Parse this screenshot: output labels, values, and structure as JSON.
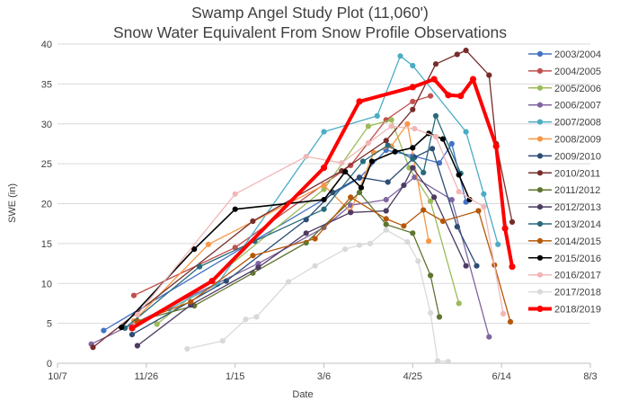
{
  "chart_data": {
    "type": "line",
    "title": "Swamp Angel Study Plot (11,060')",
    "subtitle": "Snow Water Equivalent From Snow Profile Observations",
    "xlabel": "Date",
    "ylabel": "SWE (in)",
    "x_tick_labels": [
      "10/7",
      "11/26",
      "1/15",
      "3/6",
      "4/25",
      "6/14",
      "8/3"
    ],
    "x_tick_days": [
      0,
      50,
      100,
      150,
      200,
      250,
      300
    ],
    "xlim": [
      0,
      300
    ],
    "ylim": [
      0,
      40
    ],
    "y_ticks": [
      0,
      5,
      10,
      15,
      20,
      25,
      30,
      35,
      40
    ],
    "grid": true,
    "legend_position": "right",
    "series": [
      {
        "name": "2003/2004",
        "color": "#4472C4",
        "width": 1.3,
        "x": [
          26,
          170,
          185,
          200,
          215,
          222,
          230
        ],
        "y": [
          4.1,
          23.2,
          26.7,
          26,
          25.1,
          27.5,
          20.2
        ]
      },
      {
        "name": "2004/2005",
        "color": "#C0504D",
        "width": 1.3,
        "x": [
          43,
          100,
          165,
          185,
          200,
          210
        ],
        "y": [
          8.5,
          14.5,
          24.8,
          30.5,
          32.8,
          33.5
        ]
      },
      {
        "name": "2005/2006",
        "color": "#9BBB59",
        "width": 1.3,
        "x": [
          56,
          150,
          175,
          188,
          198,
          210,
          226
        ],
        "y": [
          4.9,
          21.8,
          29.7,
          30.5,
          24.5,
          20.3,
          7.5
        ]
      },
      {
        "name": "2006/2007",
        "color": "#8064A2",
        "width": 1.3,
        "x": [
          19,
          113,
          150,
          165,
          185,
          201,
          222,
          243
        ],
        "y": [
          2.4,
          12.5,
          17,
          19.8,
          20.5,
          23.3,
          20.5,
          3.3
        ]
      },
      {
        "name": "2007/2008",
        "color": "#4BACC6",
        "width": 1.3,
        "x": [
          63,
          90,
          150,
          180,
          193,
          200,
          230,
          240,
          248
        ],
        "y": [
          6.8,
          9.9,
          29,
          31,
          38.5,
          37.3,
          29,
          21.2,
          14.9
        ]
      },
      {
        "name": "2008/2009",
        "color": "#F79646",
        "width": 1.3,
        "x": [
          43,
          85,
          150,
          165,
          178,
          188,
          197,
          209
        ],
        "y": [
          5.3,
          14.9,
          22.3,
          19,
          26.4,
          27.2,
          30,
          15.3
        ]
      },
      {
        "name": "2009/2010",
        "color": "#2C4D75",
        "width": 1.3,
        "x": [
          42,
          95,
          140,
          155,
          170,
          186,
          201,
          211,
          225,
          236
        ],
        "y": [
          3.6,
          10.3,
          18,
          21.4,
          23.3,
          22.7,
          25.8,
          26.9,
          17.1,
          12.2
        ]
      },
      {
        "name": "2010/2011",
        "color": "#772C2A",
        "width": 1.3,
        "x": [
          20,
          110,
          160,
          185,
          200,
          213,
          225,
          230,
          243,
          247,
          256
        ],
        "y": [
          2,
          17.8,
          24.1,
          27.9,
          31.8,
          37.5,
          38.7,
          39.2,
          36.1,
          27.5,
          17.7
        ]
      },
      {
        "name": "2011/2012",
        "color": "#5F7530",
        "width": 1.3,
        "x": [
          45,
          77,
          110,
          140,
          170,
          185,
          200,
          210,
          215
        ],
        "y": [
          5.3,
          7.2,
          11.3,
          15.1,
          21.4,
          17.4,
          16.3,
          11,
          5.8
        ]
      },
      {
        "name": "2012/2013",
        "color": "#4D3B62",
        "width": 1.3,
        "x": [
          45,
          75,
          113,
          140,
          165,
          185,
          195,
          200,
          212,
          230
        ],
        "y": [
          2.2,
          7.3,
          12,
          16.3,
          18.9,
          19.1,
          22.3,
          24.5,
          20.8,
          12.2
        ]
      },
      {
        "name": "2013/2014",
        "color": "#276A7C",
        "width": 1.3,
        "x": [
          38,
          80,
          111,
          150,
          172,
          186,
          200,
          206,
          213,
          227
        ],
        "y": [
          4.4,
          12.1,
          15.3,
          19.3,
          25.3,
          27.3,
          25.6,
          23.9,
          31,
          23.8
        ]
      },
      {
        "name": "2014/2015",
        "color": "#B65708",
        "width": 1.3,
        "x": [
          45,
          75,
          110,
          145,
          165,
          185,
          195,
          206,
          217,
          237,
          246,
          255
        ],
        "y": [
          5.2,
          7.7,
          13.5,
          15.6,
          20.8,
          18.1,
          17.2,
          19.2,
          17.8,
          19.1,
          12.3,
          5.2
        ]
      },
      {
        "name": "2015/2016",
        "color": "#000000",
        "width": 1.6,
        "x": [
          36,
          77,
          100,
          150,
          162,
          171,
          177,
          190,
          200,
          209,
          217,
          226,
          232
        ],
        "y": [
          4.5,
          14.3,
          19.3,
          20.5,
          24,
          22,
          25.3,
          26.5,
          27,
          28.8,
          28.1,
          23.6,
          20.5
        ]
      },
      {
        "name": "2016/2017",
        "color": "#F2B6B6",
        "width": 1.3,
        "x": [
          45,
          100,
          140,
          160,
          175,
          188,
          201,
          213,
          226,
          240,
          251
        ],
        "y": [
          6.1,
          21.2,
          25.9,
          25.1,
          27.6,
          29.7,
          29.4,
          28.4,
          21.5,
          19.6,
          6.2
        ]
      },
      {
        "name": "2017/2018",
        "color": "#D9D9D9",
        "width": 1.3,
        "x": [
          73,
          93,
          106,
          112,
          130,
          145,
          162,
          170,
          176,
          185,
          197,
          203,
          210,
          214,
          220
        ],
        "y": [
          1.8,
          2.8,
          5.5,
          5.8,
          10.2,
          12.2,
          14.3,
          14.8,
          15,
          16.7,
          15.2,
          12.8,
          6.3,
          0.3,
          0.2
        ]
      },
      {
        "name": "2018/2019",
        "color": "#FF0000",
        "width": 4,
        "x": [
          42,
          87,
          150,
          170,
          200,
          212,
          220,
          227,
          234,
          247,
          252,
          256
        ],
        "y": [
          4.4,
          10.3,
          24.5,
          32.8,
          34.6,
          35.6,
          33.6,
          33.5,
          35.6,
          27.2,
          16.9,
          12.1
        ]
      }
    ]
  }
}
